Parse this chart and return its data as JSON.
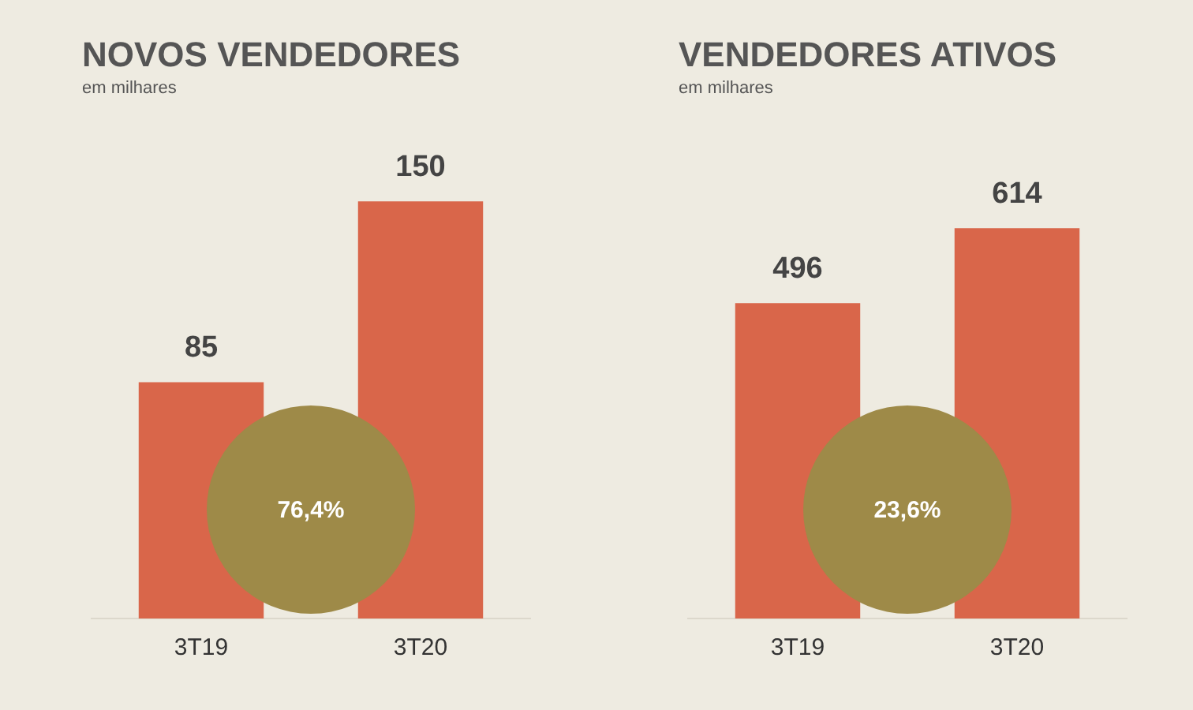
{
  "chart_data": [
    {
      "type": "bar",
      "title": "NOVOS VENDEDORES",
      "subtitle": "em milhares",
      "categories": [
        "3T19",
        "3T20"
      ],
      "values": [
        85,
        150
      ],
      "color": "#d9664a",
      "data_labels": true,
      "tick_labels": "x",
      "annotations": [
        "76,4%"
      ]
    },
    {
      "type": "bar",
      "title": "VENDEDORES ATIVOS",
      "subtitle": "em milhares",
      "categories": [
        "3T19",
        "3T20"
      ],
      "values": [
        496,
        614
      ],
      "color": "#d9664a",
      "data_labels": true,
      "tick_labels": "x",
      "annotations": [
        "23,6%"
      ]
    }
  ]
}
